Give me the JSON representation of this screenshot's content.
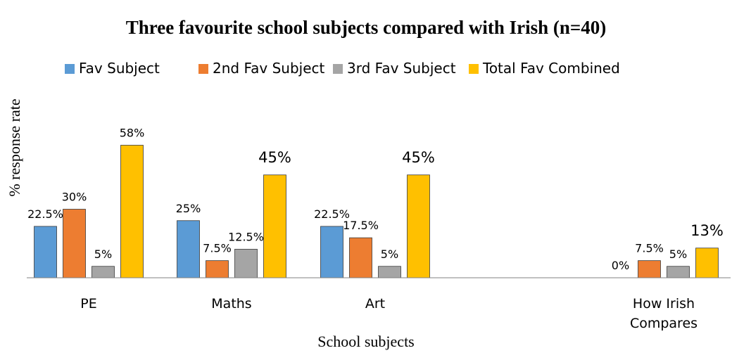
{
  "chart_data": {
    "type": "bar",
    "title": "Three favourite school subjects compared with Irish (n=40)",
    "xlabel": "School subjects",
    "ylabel": "% response rate",
    "categories": [
      "PE",
      "Maths",
      "Art",
      "How Irish Compares"
    ],
    "category_lines": [
      [
        "PE"
      ],
      [
        "Maths"
      ],
      [
        "Art"
      ],
      [
        "How Irish",
        "Compares"
      ]
    ],
    "series": [
      {
        "name": "Fav Subject",
        "color": "#5B9BD5",
        "values": [
          22.5,
          25,
          22.5,
          0
        ],
        "labels": [
          "22.5%",
          "25%",
          "22.5%",
          "0%"
        ]
      },
      {
        "name": "2nd Fav Subject",
        "color": "#ED7D31",
        "values": [
          30,
          7.5,
          17.5,
          7.5
        ],
        "labels": [
          "30%",
          "7.5%",
          "17.5%",
          "7.5%"
        ]
      },
      {
        "name": "3rd Fav Subject",
        "color": "#A5A5A5",
        "values": [
          5,
          12.5,
          5,
          5
        ],
        "labels": [
          "5%",
          "12.5%",
          "5%",
          "5%"
        ]
      },
      {
        "name": "Total Fav Combined",
        "color": "#FFC000",
        "values": [
          58,
          45,
          45,
          13
        ],
        "labels": [
          "58%",
          "45%",
          "45%",
          "13%"
        ]
      }
    ],
    "ylim": [
      0,
      60
    ],
    "grid": false,
    "legend": "top"
  }
}
